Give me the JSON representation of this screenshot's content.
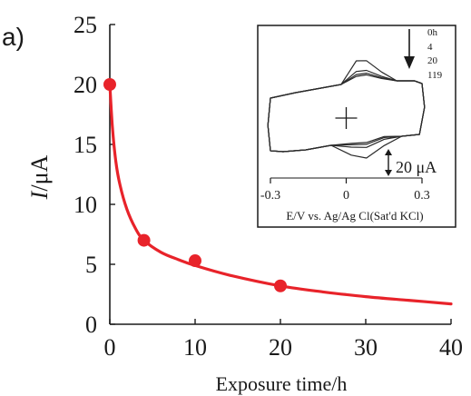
{
  "chart_data": [
    {
      "type": "scatter",
      "panel_label": "a)",
      "xlabel": "Exposure time/h",
      "ylabel": "I/μA",
      "ylabel_italic": "I",
      "ylabel_unit": "/μA",
      "xlim": [
        0,
        40
      ],
      "ylim": [
        0,
        25
      ],
      "xticks": [
        "0",
        "10",
        "20",
        "30",
        "40"
      ],
      "yticks": [
        "0",
        "5",
        "10",
        "15",
        "20",
        "25"
      ],
      "grid": false,
      "series": [
        {
          "color": "#e8232a",
          "marker": "circle",
          "points": [
            {
              "x": 0,
              "y": 20.0
            },
            {
              "x": 4,
              "y": 7.0
            },
            {
              "x": 10,
              "y": 5.3
            },
            {
              "x": 20,
              "y": 3.2
            }
          ],
          "fit_curve": [
            {
              "x": 0,
              "y": 20.0
            },
            {
              "x": 0.3,
              "y": 16.5
            },
            {
              "x": 0.7,
              "y": 13.6
            },
            {
              "x": 1.2,
              "y": 11.6
            },
            {
              "x": 2,
              "y": 9.6
            },
            {
              "x": 3,
              "y": 8.0
            },
            {
              "x": 4,
              "y": 7.0
            },
            {
              "x": 6,
              "y": 6.0
            },
            {
              "x": 8,
              "y": 5.4
            },
            {
              "x": 10,
              "y": 4.9
            },
            {
              "x": 14,
              "y": 4.1
            },
            {
              "x": 20,
              "y": 3.2
            },
            {
              "x": 25,
              "y": 2.7
            },
            {
              "x": 30,
              "y": 2.3
            },
            {
              "x": 35,
              "y": 2.0
            },
            {
              "x": 40,
              "y": 1.7
            }
          ]
        }
      ]
    },
    {
      "type": "line",
      "role": "inset-cyclic-voltammogram",
      "xlabel": "E/V vs. Ag/Ag Cl(Sat'd KCl)",
      "xlim": [
        -0.3,
        0.3
      ],
      "xticks": [
        "-0.3",
        "0",
        "0.3"
      ],
      "scale_bar_label": "20 μA",
      "arrow_direction": "down",
      "curve_labels": [
        "0h",
        "4",
        "20",
        "119"
      ],
      "series": [
        {
          "name": "0h",
          "peak_current_uA": 20.0
        },
        {
          "name": "4",
          "peak_current_uA": 7.0
        },
        {
          "name": "20",
          "peak_current_uA": 3.2
        },
        {
          "name": "119",
          "peak_current_uA": 1.0
        }
      ]
    }
  ]
}
